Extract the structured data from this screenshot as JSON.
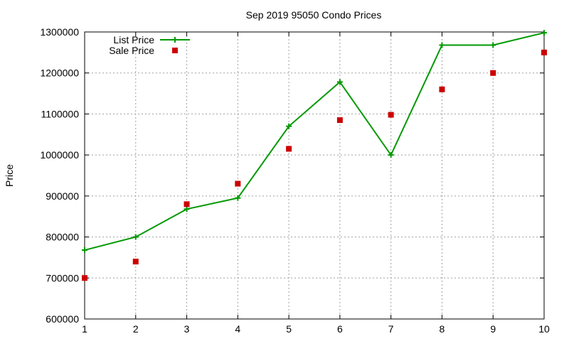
{
  "chart_data": {
    "type": "line",
    "title": "Sep 2019 95050 Condo Prices",
    "xlabel": "",
    "ylabel": "Price",
    "xlim": [
      1,
      10
    ],
    "ylim": [
      600000,
      1300000
    ],
    "x_ticks": [
      1,
      2,
      3,
      4,
      5,
      6,
      7,
      8,
      9,
      10
    ],
    "y_ticks": [
      600000,
      700000,
      800000,
      900000,
      1000000,
      1100000,
      1200000,
      1300000
    ],
    "grid": true,
    "legend_position": "top-left",
    "x": [
      1,
      2,
      3,
      4,
      5,
      6,
      7,
      8,
      9,
      10
    ],
    "series": [
      {
        "name": "List Price",
        "style": "line-with-plus-markers",
        "color": "#009900",
        "values": [
          768000,
          800000,
          868000,
          895000,
          1070000,
          1178000,
          1000000,
          1268000,
          1268000,
          1298000
        ]
      },
      {
        "name": "Sale Price",
        "style": "square-markers",
        "color": "#cc0000",
        "values": [
          700000,
          740000,
          880000,
          930000,
          1015000,
          1085000,
          1098000,
          1160000,
          1200000,
          1250000
        ]
      }
    ]
  }
}
